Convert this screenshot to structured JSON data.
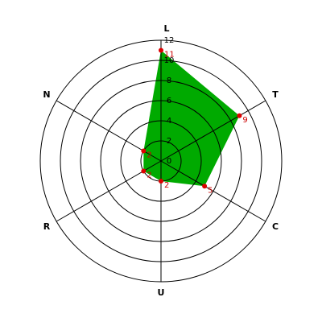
{
  "chart_data": {
    "type": "radar",
    "categories": [
      "L",
      "T",
      "C",
      "U",
      "R",
      "N"
    ],
    "values": [
      11,
      9,
      5,
      2,
      2,
      2
    ],
    "color": "#00aa00",
    "marker_color": "#dd0000",
    "ylim": [
      0,
      12
    ],
    "yticks": [
      0,
      2,
      4,
      6,
      8,
      10,
      12
    ],
    "grid": true
  }
}
